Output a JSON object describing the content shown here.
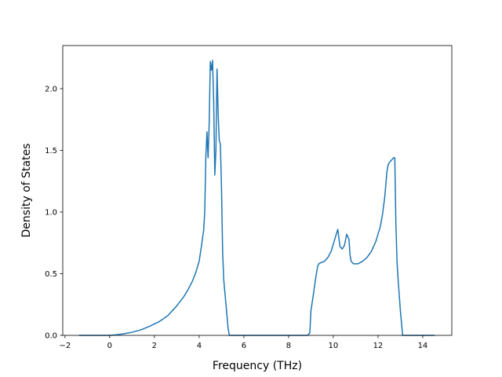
{
  "chart_data": {
    "type": "line",
    "title": "",
    "xlabel": "Frequency (THz)",
    "ylabel": "Density of States",
    "xlim": [
      -2.1,
      15.3
    ],
    "ylim": [
      0,
      2.35
    ],
    "xticks": [
      -2,
      0,
      2,
      4,
      6,
      8,
      10,
      12,
      14
    ],
    "xtick_labels": [
      "−2",
      "0",
      "2",
      "4",
      "6",
      "8",
      "10",
      "12",
      "14"
    ],
    "yticks": [
      0.0,
      0.5,
      1.0,
      1.5,
      2.0
    ],
    "ytick_labels": [
      "0.0",
      "0.5",
      "1.0",
      "1.5",
      "2.0"
    ],
    "grid": false,
    "legend": "none",
    "series": [
      {
        "color": "#1f77b4",
        "x": [
          -1.35,
          -0.5,
          0.0,
          0.3,
          0.6,
          1.0,
          1.4,
          1.8,
          2.2,
          2.6,
          3.0,
          3.3,
          3.5,
          3.7,
          3.85,
          4.0,
          4.1,
          4.2,
          4.25,
          4.3,
          4.35,
          4.4,
          4.45,
          4.5,
          4.55,
          4.6,
          4.65,
          4.7,
          4.75,
          4.8,
          4.85,
          4.9,
          4.95,
          5.0,
          5.05,
          5.1,
          5.15,
          5.2,
          5.25,
          5.3,
          5.35,
          5.4,
          5.5,
          5.6,
          5.7,
          5.8,
          5.85,
          6.0,
          7.0,
          8.0,
          8.85,
          8.95,
          9.0,
          9.1,
          9.2,
          9.3,
          9.35,
          9.45,
          9.6,
          9.75,
          9.9,
          10.0,
          10.1,
          10.2,
          10.3,
          10.4,
          10.5,
          10.6,
          10.7,
          10.75,
          10.8,
          10.9,
          11.0,
          11.1,
          11.2,
          11.3,
          11.5,
          11.7,
          11.9,
          12.1,
          12.2,
          12.3,
          12.4,
          12.45,
          12.5,
          12.6,
          12.7,
          12.75,
          12.8,
          12.85,
          12.9,
          13.0,
          13.1,
          13.15,
          13.2,
          13.5,
          14.0,
          14.5
        ],
        "y": [
          0.0,
          0.0,
          0.0,
          0.005,
          0.012,
          0.025,
          0.045,
          0.075,
          0.11,
          0.16,
          0.24,
          0.31,
          0.37,
          0.44,
          0.51,
          0.6,
          0.72,
          0.85,
          1.0,
          1.45,
          1.65,
          1.44,
          1.72,
          2.22,
          2.15,
          2.23,
          1.9,
          1.3,
          1.5,
          2.16,
          1.8,
          1.58,
          1.55,
          1.2,
          0.68,
          0.45,
          0.35,
          0.25,
          0.15,
          0.05,
          0.0,
          0.0,
          0.0,
          0.0,
          0.0,
          0.0,
          0.0,
          0.0,
          0.0,
          0.0,
          0.0,
          0.02,
          0.2,
          0.32,
          0.45,
          0.56,
          0.58,
          0.59,
          0.6,
          0.63,
          0.68,
          0.74,
          0.8,
          0.86,
          0.72,
          0.7,
          0.73,
          0.82,
          0.78,
          0.65,
          0.6,
          0.58,
          0.58,
          0.58,
          0.59,
          0.6,
          0.63,
          0.68,
          0.76,
          0.88,
          0.98,
          1.12,
          1.33,
          1.38,
          1.4,
          1.42,
          1.44,
          1.44,
          0.9,
          0.6,
          0.45,
          0.2,
          0.0,
          0.0,
          0.0,
          0.0,
          0.0,
          0.0
        ]
      }
    ]
  }
}
